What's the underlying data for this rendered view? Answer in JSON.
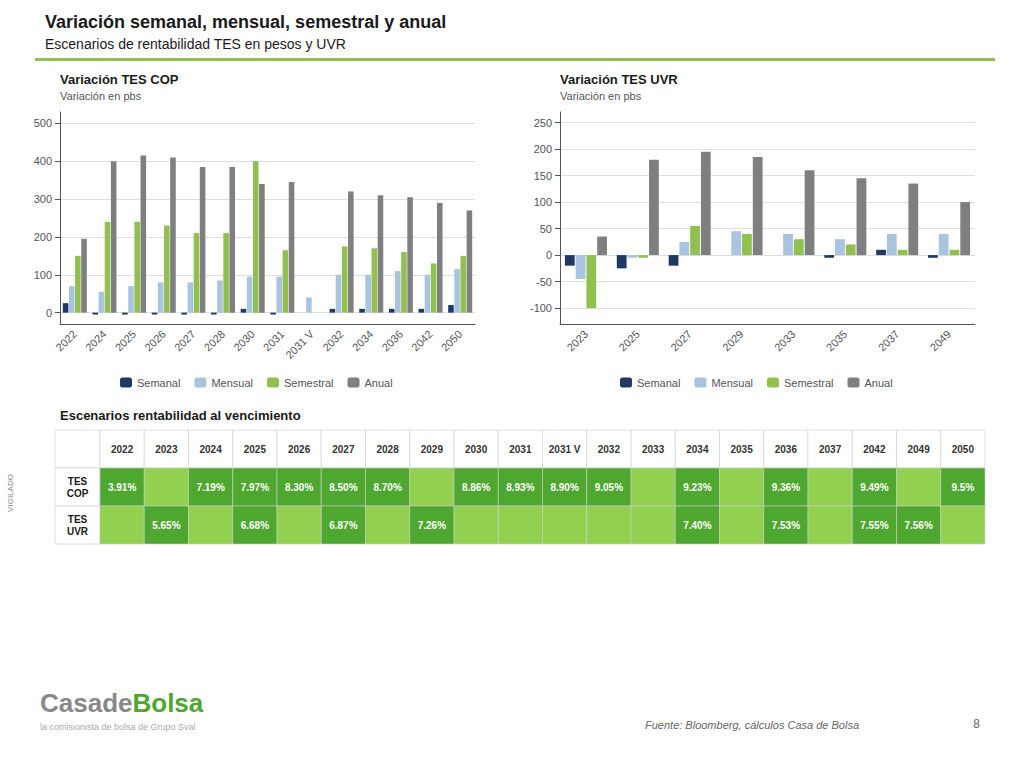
{
  "title": "Variación semanal, mensual, semestral y anual",
  "subtitle": "Escenarios de rentabilidad TES en pesos y UVR",
  "chart_data": [
    {
      "type": "bar",
      "title": "Variación TES COP",
      "subtitle": "Variación en pbs",
      "categories": [
        "2022",
        "2024",
        "2025",
        "2026",
        "2027",
        "2028",
        "2030",
        "2031",
        "2031 V",
        "2032",
        "2034",
        "2036",
        "2042",
        "2050"
      ],
      "series": [
        {
          "name": "Semanal",
          "color": "#1f3864",
          "values": [
            25,
            -5,
            -5,
            -5,
            -5,
            -5,
            10,
            -5,
            0,
            10,
            10,
            10,
            10,
            20
          ]
        },
        {
          "name": "Mensual",
          "color": "#a8c4e0",
          "values": [
            70,
            55,
            70,
            80,
            80,
            85,
            95,
            95,
            40,
            100,
            100,
            110,
            100,
            115
          ]
        },
        {
          "name": "Semestral",
          "color": "#92c050",
          "values": [
            150,
            240,
            240,
            230,
            210,
            210,
            400,
            165,
            0,
            175,
            170,
            160,
            130,
            150
          ]
        },
        {
          "name": "Anual",
          "color": "#7f7f7f",
          "values": [
            195,
            400,
            415,
            410,
            385,
            385,
            340,
            345,
            0,
            320,
            310,
            305,
            290,
            270
          ]
        }
      ],
      "ylim": [
        -30,
        530
      ],
      "yticks": [
        0,
        100,
        200,
        300,
        400,
        500
      ],
      "grid": true,
      "legend": "bottom"
    },
    {
      "type": "bar",
      "title": "Variación TES UVR",
      "subtitle": "Variación en pbs",
      "categories": [
        "2023",
        "2025",
        "2027",
        "2029",
        "2033",
        "2035",
        "2037",
        "2049"
      ],
      "series": [
        {
          "name": "Semanal",
          "color": "#1f3864",
          "values": [
            -20,
            -25,
            -20,
            0,
            0,
            -5,
            10,
            -5
          ]
        },
        {
          "name": "Mensual",
          "color": "#a8c4e0",
          "values": [
            -45,
            -5,
            25,
            45,
            40,
            30,
            40,
            40
          ]
        },
        {
          "name": "Semestral",
          "color": "#92c050",
          "values": [
            -100,
            -5,
            55,
            40,
            30,
            20,
            10,
            10
          ]
        },
        {
          "name": "Anual",
          "color": "#7f7f7f",
          "values": [
            35,
            180,
            195,
            185,
            160,
            145,
            135,
            100
          ]
        }
      ],
      "ylim": [
        -130,
        270
      ],
      "yticks": [
        -100,
        -50,
        0,
        50,
        100,
        150,
        200,
        250
      ],
      "grid": true,
      "legend": "bottom"
    },
    {
      "type": "table",
      "title": "Escenarios rentabilidad al vencimiento",
      "columns": [
        "2022",
        "2023",
        "2024",
        "2025",
        "2026",
        "2027",
        "2028",
        "2029",
        "2030",
        "2031",
        "2031 V",
        "2032",
        "2033",
        "2034",
        "2035",
        "2036",
        "2037",
        "2042",
        "2049",
        "2050"
      ],
      "rows": [
        {
          "name": "TES\nCOP",
          "values": [
            3.91,
            null,
            7.19,
            7.97,
            8.3,
            8.5,
            8.7,
            null,
            8.86,
            8.93,
            8.9,
            9.05,
            null,
            9.23,
            null,
            9.36,
            null,
            9.49,
            null,
            9.5
          ],
          "value_labels": [
            "3.91%",
            null,
            "7.19%",
            "7.97%",
            "8.30%",
            "8.50%",
            "8.70%",
            null,
            "8.86%",
            "8.93%",
            "8.90%",
            "9.05%",
            null,
            "9.23%",
            null,
            "9.36%",
            null,
            "9.49%",
            null,
            "9.5%"
          ]
        },
        {
          "name": "TES\nUVR",
          "values": [
            null,
            5.65,
            null,
            6.68,
            null,
            6.87,
            null,
            7.26,
            null,
            null,
            null,
            null,
            null,
            7.4,
            null,
            7.53,
            null,
            7.55,
            7.56,
            null
          ],
          "value_labels": [
            null,
            "5.65%",
            null,
            "6.68%",
            null,
            "6.87%",
            null,
            "7.26%",
            null,
            null,
            null,
            null,
            null,
            "7.40%",
            null,
            "7.53%",
            null,
            "7.55%",
            "7.56%",
            null
          ]
        }
      ]
    }
  ],
  "annotations": [
    "Fuente: Bloomberg, cálculos Casa de Bolsa",
    "8",
    "Casade",
    "Bolsa",
    "la comisionista de bolsa de Grupo Sval",
    "VIGILADO"
  ]
}
